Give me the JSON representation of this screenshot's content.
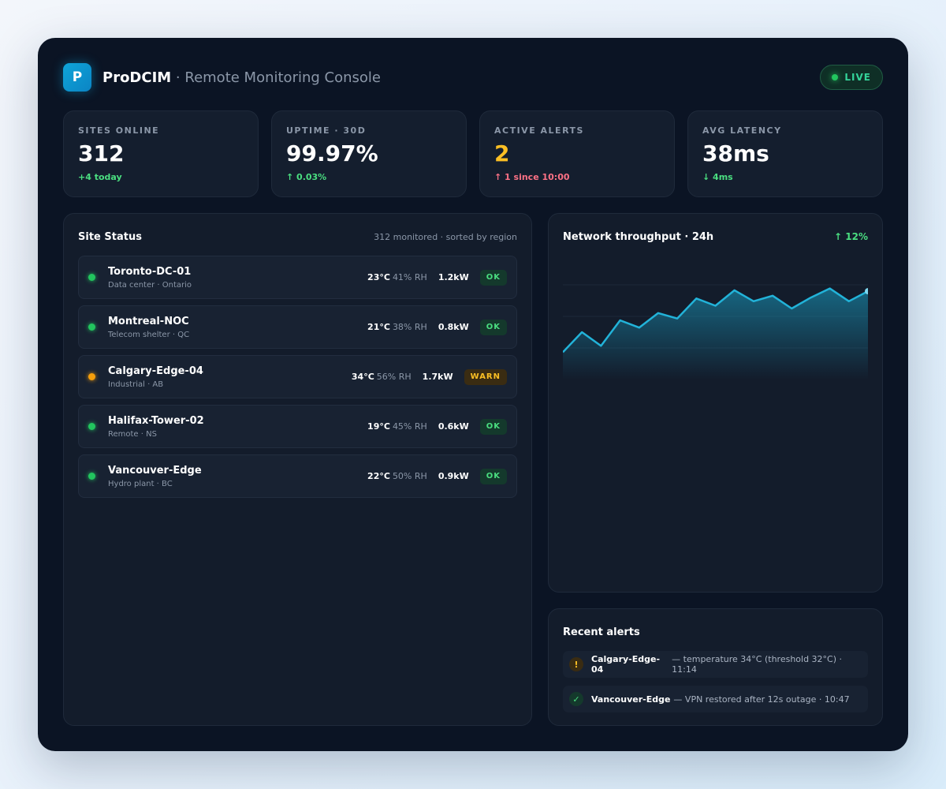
{
  "header": {
    "logo_letter": "P",
    "app_name": "ProDCIM",
    "subtitle": " · Remote Monitoring Console",
    "live_label": "LIVE"
  },
  "kpis": [
    {
      "label": "SITES ONLINE",
      "value": "312",
      "delta": "+4 today",
      "tone": "good"
    },
    {
      "label": "UPTIME · 30D",
      "value": "99.97%",
      "delta": "↑ 0.03%",
      "tone": "good"
    },
    {
      "label": "ACTIVE ALERTS",
      "value": "2",
      "delta": "↑ 1 since 10:00",
      "tone": "bad"
    },
    {
      "label": "AVG LATENCY",
      "value": "38ms",
      "delta": "↓ 4ms",
      "tone": "good"
    }
  ],
  "site_status": {
    "title": "Site Status",
    "meta": "312 monitored · sorted by region",
    "sites": [
      {
        "name": "Toronto-DC-01",
        "type": "Data center · Ontario",
        "temp": "23°C",
        "rh": "41% RH",
        "power": "1.2kW",
        "status": "OK",
        "status_color": "#22c55e"
      },
      {
        "name": "Montreal-NOC",
        "type": "Telecom shelter · QC",
        "temp": "21°C",
        "rh": "38% RH",
        "power": "0.8kW",
        "status": "OK",
        "status_color": "#22c55e"
      },
      {
        "name": "Calgary-Edge-04",
        "type": "Industrial · AB",
        "temp": "34°C",
        "rh": "56% RH",
        "power": "1.7kW",
        "status": "WARN",
        "status_color": "#f59e0b"
      },
      {
        "name": "Halifax-Tower-02",
        "type": "Remote · NS",
        "temp": "19°C",
        "rh": "45% RH",
        "power": "0.6kW",
        "status": "OK",
        "status_color": "#22c55e"
      },
      {
        "name": "Vancouver-Edge",
        "type": "Hydro plant · BC",
        "temp": "22°C",
        "rh": "50% RH",
        "power": "0.9kW",
        "status": "OK",
        "status_color": "#22c55e"
      }
    ]
  },
  "throughput": {
    "title": "Network throughput · 24h",
    "trend": "↑ 12%",
    "line_color": "#22b3d9"
  },
  "chart_data": {
    "type": "area",
    "title": "Network throughput · 24h",
    "x": [
      0,
      1,
      2,
      3,
      4,
      5,
      6,
      7,
      8,
      9,
      10,
      11,
      12,
      13,
      14,
      15,
      16
    ],
    "values": [
      30,
      52,
      37,
      65,
      57,
      73,
      67,
      89,
      81,
      98,
      86,
      92,
      78,
      90,
      100,
      86,
      97
    ],
    "ylim": [
      0,
      130
    ],
    "grid": true
  },
  "alerts": {
    "title": "Recent alerts",
    "items": [
      {
        "icon": "!",
        "kind": "warn",
        "site": "Calgary-Edge-04",
        "text": "— temperature 34°C (threshold 32°C) · 11:14"
      },
      {
        "icon": "✓",
        "kind": "ok",
        "site": "Vancouver-Edge",
        "text": "— VPN restored after 12s outage · 10:47"
      }
    ]
  }
}
